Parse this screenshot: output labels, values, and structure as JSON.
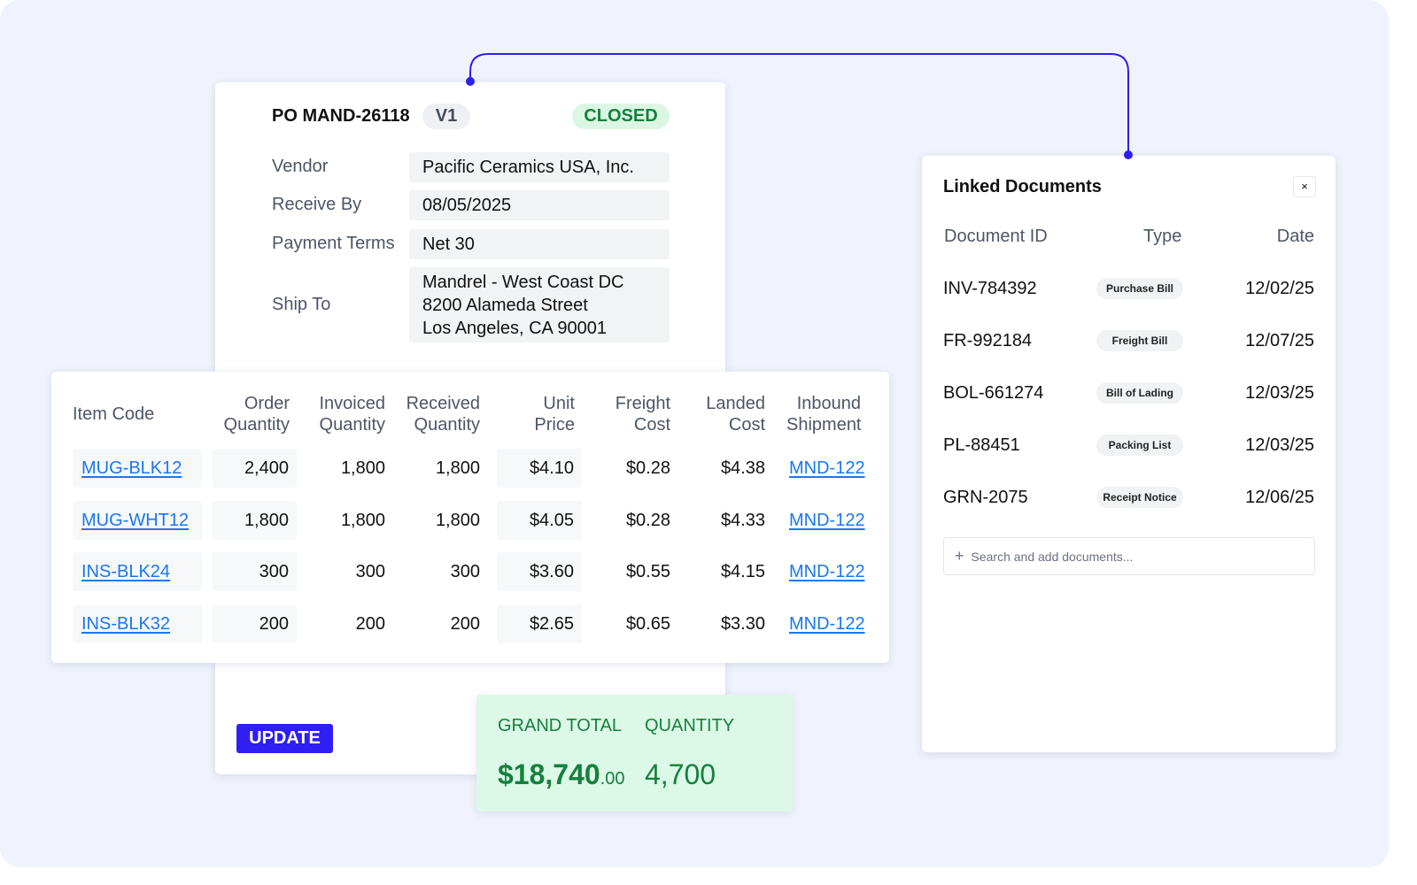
{
  "po": {
    "title": "PO MAND-26118",
    "version": "V1",
    "status": "CLOSED",
    "fields": [
      {
        "label": "Vendor",
        "value": "Pacific Ceramics USA, Inc."
      },
      {
        "label": "Receive By",
        "value": "08/05/2025"
      },
      {
        "label": "Payment Terms",
        "value": "Net 30"
      }
    ],
    "ship_to": {
      "label": "Ship To",
      "lines": [
        "Mandrel - West Coast DC",
        "8200 Alameda Street",
        "Los Angeles, CA 90001"
      ]
    },
    "update_label": "UPDATE"
  },
  "table": {
    "headers": [
      [
        "Item Code",
        ""
      ],
      [
        "Order",
        "Quantity"
      ],
      [
        "Invoiced",
        "Quantity"
      ],
      [
        "Received",
        "Quantity"
      ],
      [
        "Unit",
        "Price"
      ],
      [
        "Freight",
        "Cost"
      ],
      [
        "Landed",
        "Cost"
      ],
      [
        "Inbound",
        "Shipment"
      ]
    ],
    "rows": [
      [
        "MUG-BLK12",
        "2,400",
        "1,800",
        "1,800",
        "$4.10",
        "$0.28",
        "$4.38",
        "MND-122"
      ],
      [
        "MUG-WHT12",
        "1,800",
        "1,800",
        "1,800",
        "$4.05",
        "$0.28",
        "$4.33",
        "MND-122"
      ],
      [
        "INS-BLK24",
        "300",
        "300",
        "300",
        "$3.60",
        "$0.55",
        "$4.15",
        "MND-122"
      ],
      [
        "INS-BLK32",
        "200",
        "200",
        "200",
        "$2.65",
        "$0.65",
        "$3.30",
        "MND-122"
      ]
    ]
  },
  "totals": {
    "grand_total_label": "GRAND TOTAL",
    "grand_total": "$18,740",
    "grand_total_cents": ".00",
    "quantity_label": "QUANTITY",
    "quantity": "4,700"
  },
  "linked": {
    "title": "Linked Documents",
    "close": "×",
    "headers": [
      "Document ID",
      "Type",
      "Date"
    ],
    "docs": [
      {
        "id": "INV-784392",
        "type": "Purchase Bill",
        "date": "12/02/25"
      },
      {
        "id": "FR-992184",
        "type": "Freight Bill",
        "date": "12/07/25"
      },
      {
        "id": "BOL-661274",
        "type": "Bill of Lading",
        "date": "12/03/25"
      },
      {
        "id": "PL-88451",
        "type": "Packing List",
        "date": "12/03/25"
      },
      {
        "id": "GRN-2075",
        "type": "Receipt Notice",
        "date": "12/06/25"
      }
    ],
    "search_placeholder": "Search and add documents...",
    "plus": "+"
  },
  "colors": {
    "accent": "#2f1ff2",
    "link": "#1877f2",
    "success": "#15803d"
  }
}
